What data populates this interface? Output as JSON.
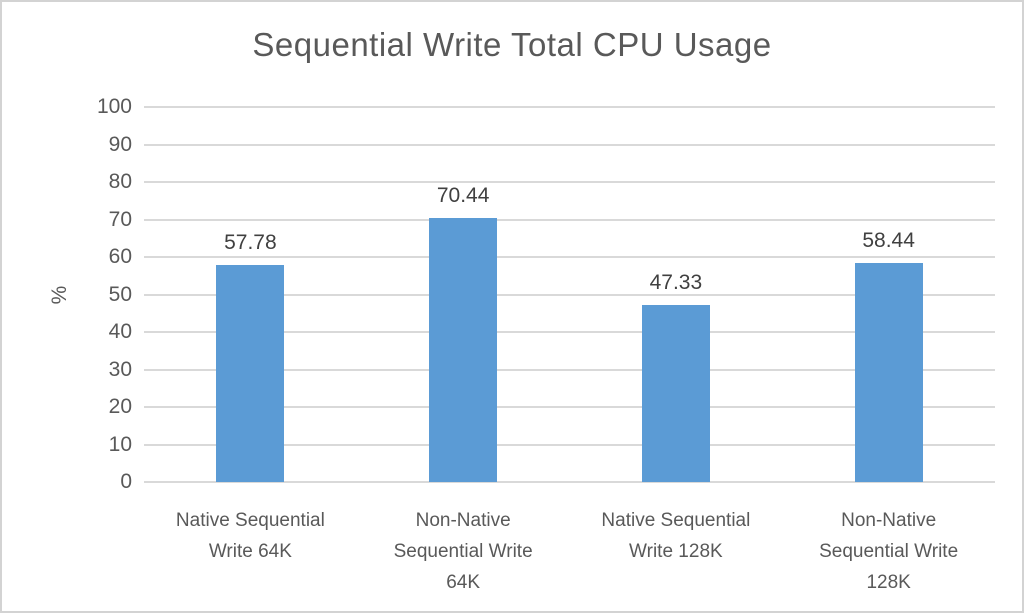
{
  "chart_data": {
    "type": "bar",
    "title": "Sequential Write Total CPU Usage",
    "xlabel": "",
    "ylabel": "%",
    "ylim": [
      0,
      100
    ],
    "ytick_step": 10,
    "yticks": [
      0,
      10,
      20,
      30,
      40,
      50,
      60,
      70,
      80,
      90,
      100
    ],
    "grid": true,
    "legend": false,
    "categories": [
      "Native Sequential Write 64K",
      "Non-Native Sequential Write 64K",
      "Native Sequential Write 128K",
      "Non-Native Sequential Write 128K"
    ],
    "category_label_lines": [
      [
        "Native Sequential",
        "Write 64K"
      ],
      [
        "Non-Native",
        "Sequential Write",
        "64K"
      ],
      [
        "Native Sequential",
        "Write 128K"
      ],
      [
        "Non-Native",
        "Sequential Write",
        "128K"
      ]
    ],
    "values": [
      57.78,
      70.44,
      47.33,
      58.44
    ],
    "value_labels": [
      "57.78",
      "70.44",
      "47.33",
      "58.44"
    ]
  },
  "colors": {
    "bar": "#5b9bd5",
    "title_text": "#595959",
    "axis_text": "#595959",
    "value_label_text": "#404040",
    "gridline": "#d9d9d9",
    "border": "#d3d3d3",
    "background": "#ffffff"
  }
}
